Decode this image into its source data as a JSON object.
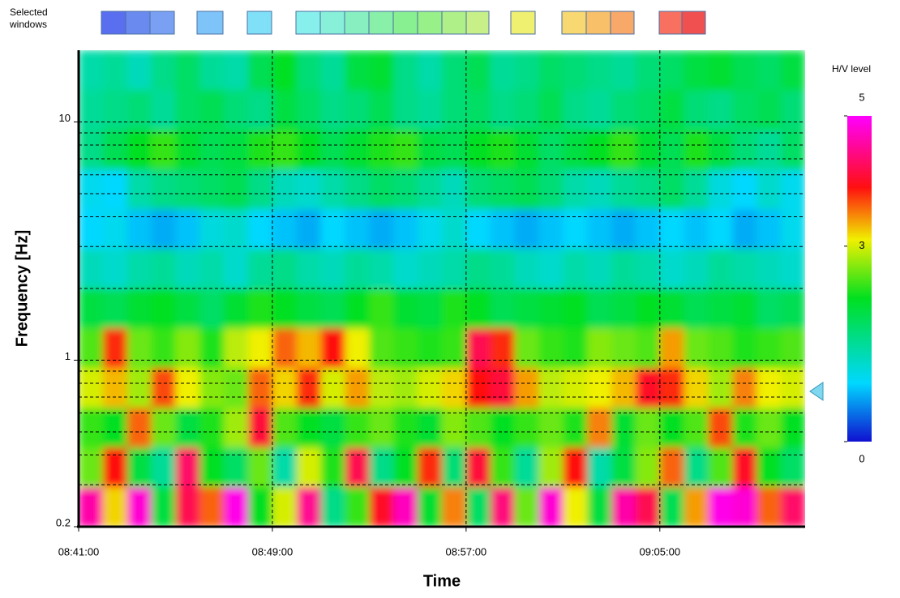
{
  "chart_data": {
    "type": "heatmap",
    "selected_windows_label": "Selected windows",
    "xlabel": "Time",
    "ylabel": "Frequency [Hz]",
    "colorbar_title": "H/V level",
    "xlim": [
      521,
      551
    ],
    "xticks": [
      {
        "value": 521,
        "label": "08:41:00"
      },
      {
        "value": 529,
        "label": "08:49:00"
      },
      {
        "value": 537,
        "label": "08:57:00"
      },
      {
        "value": 545,
        "label": "09:05:00"
      }
    ],
    "ylim": [
      0.2,
      20
    ],
    "log_y": true,
    "yticks": [
      0.2,
      1,
      10
    ],
    "ygrid": [
      0.3,
      0.4,
      0.5,
      0.6,
      0.7,
      0.8,
      0.9,
      1,
      2,
      3,
      4,
      5,
      6,
      7,
      8,
      9,
      10
    ],
    "clim": [
      0,
      5
    ],
    "cticks": [
      0,
      3,
      5
    ],
    "colorscale": [
      {
        "value": 0,
        "color": "#1010d0"
      },
      {
        "value": 0.9,
        "color": "#00d8ff"
      },
      {
        "value": 2.2,
        "color": "#00e020"
      },
      {
        "value": 3.1,
        "color": "#f0f000"
      },
      {
        "value": 3.9,
        "color": "#ff1010"
      },
      {
        "value": 5,
        "color": "#ff00ff"
      }
    ],
    "peak_frequency": 0.74,
    "peak_color": "#7fd8f0",
    "x": [
      521.5,
      522.5,
      523.5,
      524.5,
      525.5,
      526.5,
      527.5,
      528.5,
      529.5,
      530.5,
      531.5,
      532.5,
      533.5,
      534.5,
      535.5,
      536.5,
      537.5,
      538.5,
      539.5,
      540.5,
      541.5,
      542.5,
      543.5,
      544.5,
      545.5,
      546.5,
      547.5,
      548.5,
      549.5,
      550.5
    ],
    "y": [
      0.243,
      0.356,
      0.523,
      0.767,
      1.13,
      1.65,
      2.43,
      3.56,
      5.23,
      7.67,
      11.3,
      16.5
    ],
    "z": [
      [
        4.6,
        3.2,
        4.8,
        2.0,
        4.2,
        3.6,
        4.9,
        2.2,
        3.0,
        4.5,
        1.6,
        2.4,
        4.0,
        4.7,
        2.1,
        3.5,
        1.8,
        4.4,
        2.6,
        4.8,
        3.1,
        2.0,
        4.6,
        4.2,
        1.9,
        3.4,
        4.9,
        4.8,
        3.6,
        4.3
      ],
      [
        2.6,
        3.9,
        2.0,
        1.5,
        4.3,
        2.2,
        1.8,
        2.6,
        1.4,
        3.0,
        2.3,
        4.2,
        1.6,
        2.2,
        3.8,
        1.7,
        4.1,
        2.4,
        1.5,
        2.8,
        3.9,
        1.4,
        2.0,
        2.7,
        3.6,
        1.6,
        2.5,
        4.0,
        2.2,
        1.8
      ],
      [
        2.4,
        2.2,
        3.6,
        2.6,
        2.0,
        2.3,
        2.8,
        4.1,
        2.5,
        2.2,
        2.0,
        2.4,
        2.6,
        2.3,
        2.1,
        2.7,
        2.5,
        2.2,
        2.4,
        2.6,
        2.3,
        3.5,
        2.1,
        2.6,
        2.2,
        2.5,
        3.7,
        2.3,
        2.6,
        2.2
      ],
      [
        3.0,
        3.3,
        2.8,
        3.7,
        3.1,
        2.7,
        2.6,
        3.6,
        3.2,
        3.8,
        3.0,
        3.4,
        2.9,
        2.8,
        3.0,
        3.2,
        3.9,
        4.1,
        3.4,
        2.9,
        3.0,
        3.1,
        3.3,
        4.0,
        3.8,
        3.2,
        2.8,
        3.5,
        3.1,
        3.0
      ],
      [
        2.5,
        3.8,
        2.6,
        2.4,
        2.7,
        2.3,
        2.9,
        3.1,
        3.6,
        3.3,
        3.9,
        3.1,
        2.5,
        2.4,
        2.3,
        2.4,
        4.2,
        3.8,
        2.6,
        2.4,
        2.3,
        2.7,
        2.6,
        2.5,
        3.4,
        2.6,
        2.5,
        2.3,
        2.4,
        2.5
      ],
      [
        2.0,
        1.9,
        2.1,
        2.2,
        2.0,
        1.8,
        2.1,
        2.3,
        2.2,
        2.0,
        1.9,
        2.2,
        2.4,
        2.1,
        2.0,
        2.3,
        2.2,
        1.9,
        2.0,
        2.1,
        2.2,
        1.9,
        2.0,
        2.2,
        2.1,
        1.9,
        2.0,
        2.1,
        1.8,
        1.9
      ],
      [
        1.3,
        1.2,
        1.4,
        1.5,
        1.3,
        1.4,
        1.2,
        1.5,
        1.6,
        1.4,
        1.3,
        1.5,
        1.4,
        1.2,
        1.3,
        1.4,
        1.6,
        1.5,
        1.3,
        1.2,
        1.4,
        1.3,
        1.5,
        1.4,
        1.2,
        1.3,
        1.5,
        1.4,
        1.3,
        1.2
      ],
      [
        0.9,
        1.0,
        0.8,
        0.7,
        0.8,
        1.1,
        1.2,
        0.9,
        0.8,
        0.7,
        0.9,
        0.8,
        0.7,
        0.8,
        1.0,
        1.2,
        0.9,
        0.8,
        0.7,
        0.8,
        0.9,
        0.8,
        0.7,
        0.8,
        0.9,
        0.8,
        0.9,
        0.7,
        0.8,
        1.0
      ],
      [
        1.0,
        0.9,
        1.4,
        1.6,
        1.7,
        1.8,
        1.9,
        1.6,
        1.3,
        1.2,
        1.4,
        1.6,
        1.8,
        1.7,
        1.5,
        1.3,
        1.7,
        1.8,
        1.9,
        1.7,
        1.4,
        1.3,
        1.5,
        1.6,
        1.8,
        1.5,
        1.1,
        0.9,
        1.2,
        1.0
      ],
      [
        1.6,
        1.9,
        2.2,
        2.4,
        2.1,
        1.9,
        2.0,
        2.3,
        2.4,
        2.2,
        1.9,
        2.1,
        2.3,
        2.4,
        2.0,
        1.9,
        2.2,
        2.3,
        2.1,
        1.8,
        2.0,
        2.2,
        2.4,
        2.1,
        1.9,
        2.3,
        2.0,
        1.7,
        1.5,
        1.8
      ],
      [
        1.5,
        1.6,
        1.7,
        1.5,
        1.8,
        1.9,
        1.7,
        1.6,
        2.0,
        1.8,
        1.6,
        1.7,
        1.9,
        1.6,
        1.5,
        1.7,
        1.8,
        1.6,
        1.7,
        1.9,
        1.6,
        1.5,
        1.7,
        1.8,
        2.0,
        1.7,
        1.6,
        1.8,
        1.9,
        1.7
      ],
      [
        1.4,
        1.5,
        1.3,
        1.6,
        1.8,
        1.5,
        1.4,
        1.9,
        2.2,
        1.7,
        1.5,
        2.0,
        2.1,
        1.6,
        1.4,
        1.7,
        1.9,
        1.5,
        1.6,
        1.8,
        1.7,
        1.6,
        1.5,
        1.7,
        1.8,
        2.0,
        2.1,
        1.9,
        1.8,
        2.0
      ]
    ]
  }
}
